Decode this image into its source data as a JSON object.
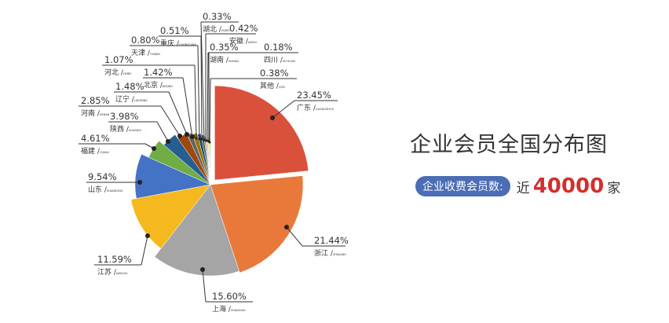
{
  "title": "企业会员全国分布图",
  "subtitle": {
    "badge": "企业收费会员数:",
    "prefix": "近",
    "count": "40000",
    "unit": "家"
  },
  "chart_data": {
    "type": "pie",
    "title": "",
    "slices": [
      {
        "name": "广东",
        "pinyin": "GUANGZHOU",
        "value": 23.45,
        "label": "23.45%",
        "color": "#d9513a",
        "exploded": true
      },
      {
        "name": "浙江",
        "pinyin": "ZHEJIANG",
        "value": 21.44,
        "label": "21.44%",
        "color": "#e8793a"
      },
      {
        "name": "上海",
        "pinyin": "SHANGHAI",
        "value": 15.6,
        "label": "15.60%",
        "color": "#a5a5a5"
      },
      {
        "name": "江苏",
        "pinyin": "JIANGSU",
        "value": 11.59,
        "label": "11.59%",
        "color": "#f5b91f"
      },
      {
        "name": "山东",
        "pinyin": "SHANDONG",
        "value": 9.54,
        "label": "9.54%",
        "color": "#4472c4"
      },
      {
        "name": "福建",
        "pinyin": "FUJIAN",
        "value": 4.61,
        "label": "4.61%",
        "color": "#70ad47"
      },
      {
        "name": "陕西",
        "pinyin": "SHAANXI",
        "value": 3.98,
        "label": "3.98%",
        "color": "#255e91"
      },
      {
        "name": "河南",
        "pinyin": "HENAN",
        "value": 2.85,
        "label": "2.85%",
        "color": "#9e480e"
      },
      {
        "name": "辽宁",
        "pinyin": "LIAONING",
        "value": 1.48,
        "label": "1.48%",
        "color": "#636363"
      },
      {
        "name": "北京",
        "pinyin": "BEIJING",
        "value": 1.42,
        "label": "1.42%",
        "color": "#997300"
      },
      {
        "name": "河北",
        "pinyin": "HEBEI",
        "value": 1.07,
        "label": "1.07%",
        "color": "#264478"
      },
      {
        "name": "天津",
        "pinyin": "TIANJIN",
        "value": 0.8,
        "label": "0.80%",
        "color": "#43682b"
      },
      {
        "name": "重庆",
        "pinyin": "CHONGQING",
        "value": 0.51,
        "label": "0.51%",
        "color": "#698ed0"
      },
      {
        "name": "湖北",
        "pinyin": "HUBEI",
        "value": 0.33,
        "label": "0.33%",
        "color": "#f1975a"
      },
      {
        "name": "安徽",
        "pinyin": "ANHUI",
        "value": 0.42,
        "label": "0.42%",
        "color": "#b7b7b7"
      },
      {
        "name": "湖南",
        "pinyin": "HUNAN",
        "value": 0.35,
        "label": "0.35%",
        "color": "#ffcd33"
      },
      {
        "name": "四川",
        "pinyin": "SICHUAN",
        "value": 0.18,
        "label": "0.18%",
        "color": "#5b9bd5"
      },
      {
        "name": "其他",
        "pinyin": "QITA",
        "value": 0.38,
        "label": "0.38%",
        "color": "#8cc168"
      }
    ]
  }
}
